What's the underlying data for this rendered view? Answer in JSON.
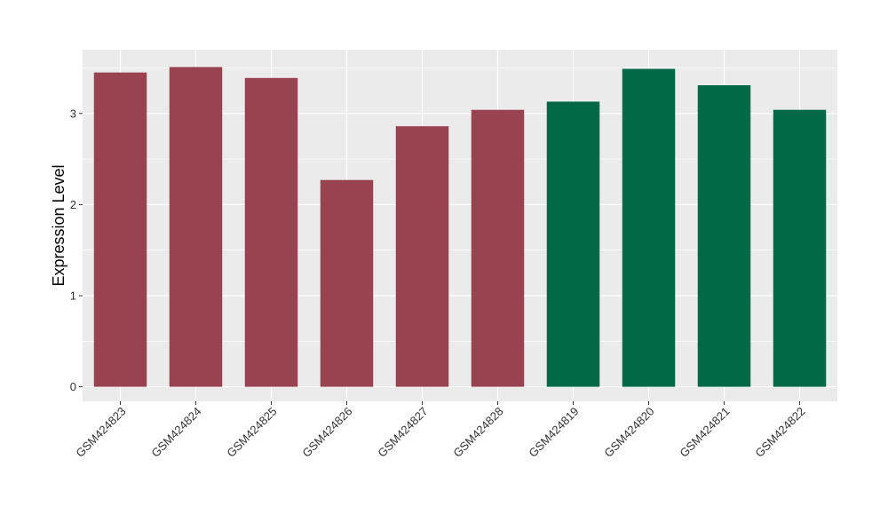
{
  "chart_data": {
    "type": "bar",
    "title": "",
    "xlabel": "",
    "ylabel": "Expression Level",
    "ylim": [
      -0.16,
      3.7
    ],
    "yticks": [
      0,
      1,
      2,
      3
    ],
    "grid": true,
    "categories": [
      "GSM424823",
      "GSM424824",
      "GSM424825",
      "GSM424826",
      "GSM424827",
      "GSM424828",
      "GSM424819",
      "GSM424820",
      "GSM424821",
      "GSM424822"
    ],
    "values": [
      3.45,
      3.51,
      3.39,
      2.27,
      2.86,
      3.04,
      3.13,
      3.49,
      3.31,
      3.04
    ],
    "bar_colors": [
      "#9a4350",
      "#9a4350",
      "#9a4350",
      "#9a4350",
      "#9a4350",
      "#9a4350",
      "#026845",
      "#026845",
      "#026845",
      "#026845"
    ],
    "panel_background": "#ebebeb",
    "grid_color": "#ffffff"
  }
}
